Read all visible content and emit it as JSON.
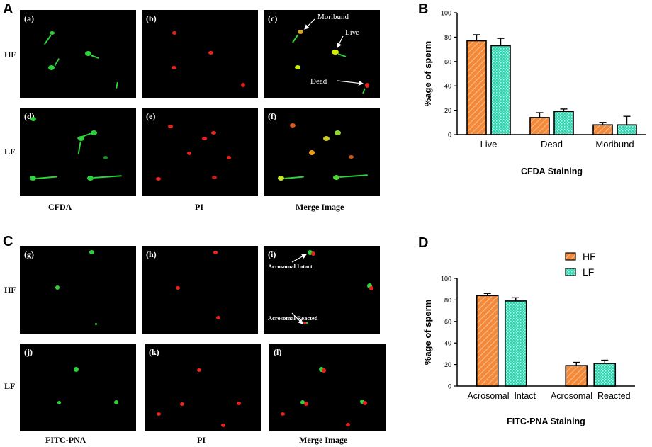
{
  "panels": {
    "A": "A",
    "B": "B",
    "C": "C",
    "D": "D"
  },
  "micrographs": {
    "top": {
      "rows": [
        "HF",
        "LF"
      ],
      "columns": [
        "CFDA",
        "PI",
        "Merge Image"
      ],
      "tags": [
        "(a)",
        "(b)",
        "(c)",
        "(d)",
        "(e)",
        "(f)"
      ],
      "annotations": [
        "Moribund",
        "Live",
        "Dead"
      ]
    },
    "bottom": {
      "rows": [
        "HF",
        "LF"
      ],
      "columns": [
        "FITC-PNA",
        "PI",
        "Merge Image"
      ],
      "tags": [
        "(g)",
        "(h)",
        "(i)",
        "(j)",
        "(k)",
        "(l)"
      ],
      "annotations": [
        "Acrosomal Intact",
        "Acrosomal Reacted"
      ]
    }
  },
  "colors": {
    "hf_orange": "#f4893a",
    "lf_teal": "#2fd6b2",
    "green_stain": "#2fd13a",
    "red_stain": "#e8231c"
  },
  "chart_data": [
    {
      "type": "bar",
      "panel": "B",
      "categories": [
        "Live",
        "Dead",
        "Moribund"
      ],
      "series": [
        {
          "name": "HF",
          "values": [
            77,
            14,
            8
          ],
          "errors": [
            5,
            4,
            2
          ]
        },
        {
          "name": "LF",
          "values": [
            73,
            19,
            8
          ],
          "errors": [
            6,
            2,
            7
          ]
        }
      ],
      "ylabel": "%age of sperm",
      "xlabel": "CFDA Staining",
      "ylim": [
        0,
        100
      ],
      "yticks": [
        0,
        20,
        40,
        60,
        80,
        100
      ],
      "legend": "none"
    },
    {
      "type": "bar",
      "panel": "D",
      "categories": [
        "Acrosomal  Intact",
        "Acrosomal  Reacted"
      ],
      "series": [
        {
          "name": "HF",
          "values": [
            84,
            19
          ],
          "errors": [
            2,
            3
          ]
        },
        {
          "name": "LF",
          "values": [
            79,
            21
          ],
          "errors": [
            3,
            3
          ]
        }
      ],
      "ylabel": "%age of sperm",
      "xlabel": "FITC-PNA Staining",
      "ylim": [
        0,
        100
      ],
      "yticks": [
        0,
        20,
        40,
        60,
        80,
        100
      ],
      "legend": "top-right",
      "legend_entries": [
        "HF",
        "LF"
      ]
    }
  ]
}
